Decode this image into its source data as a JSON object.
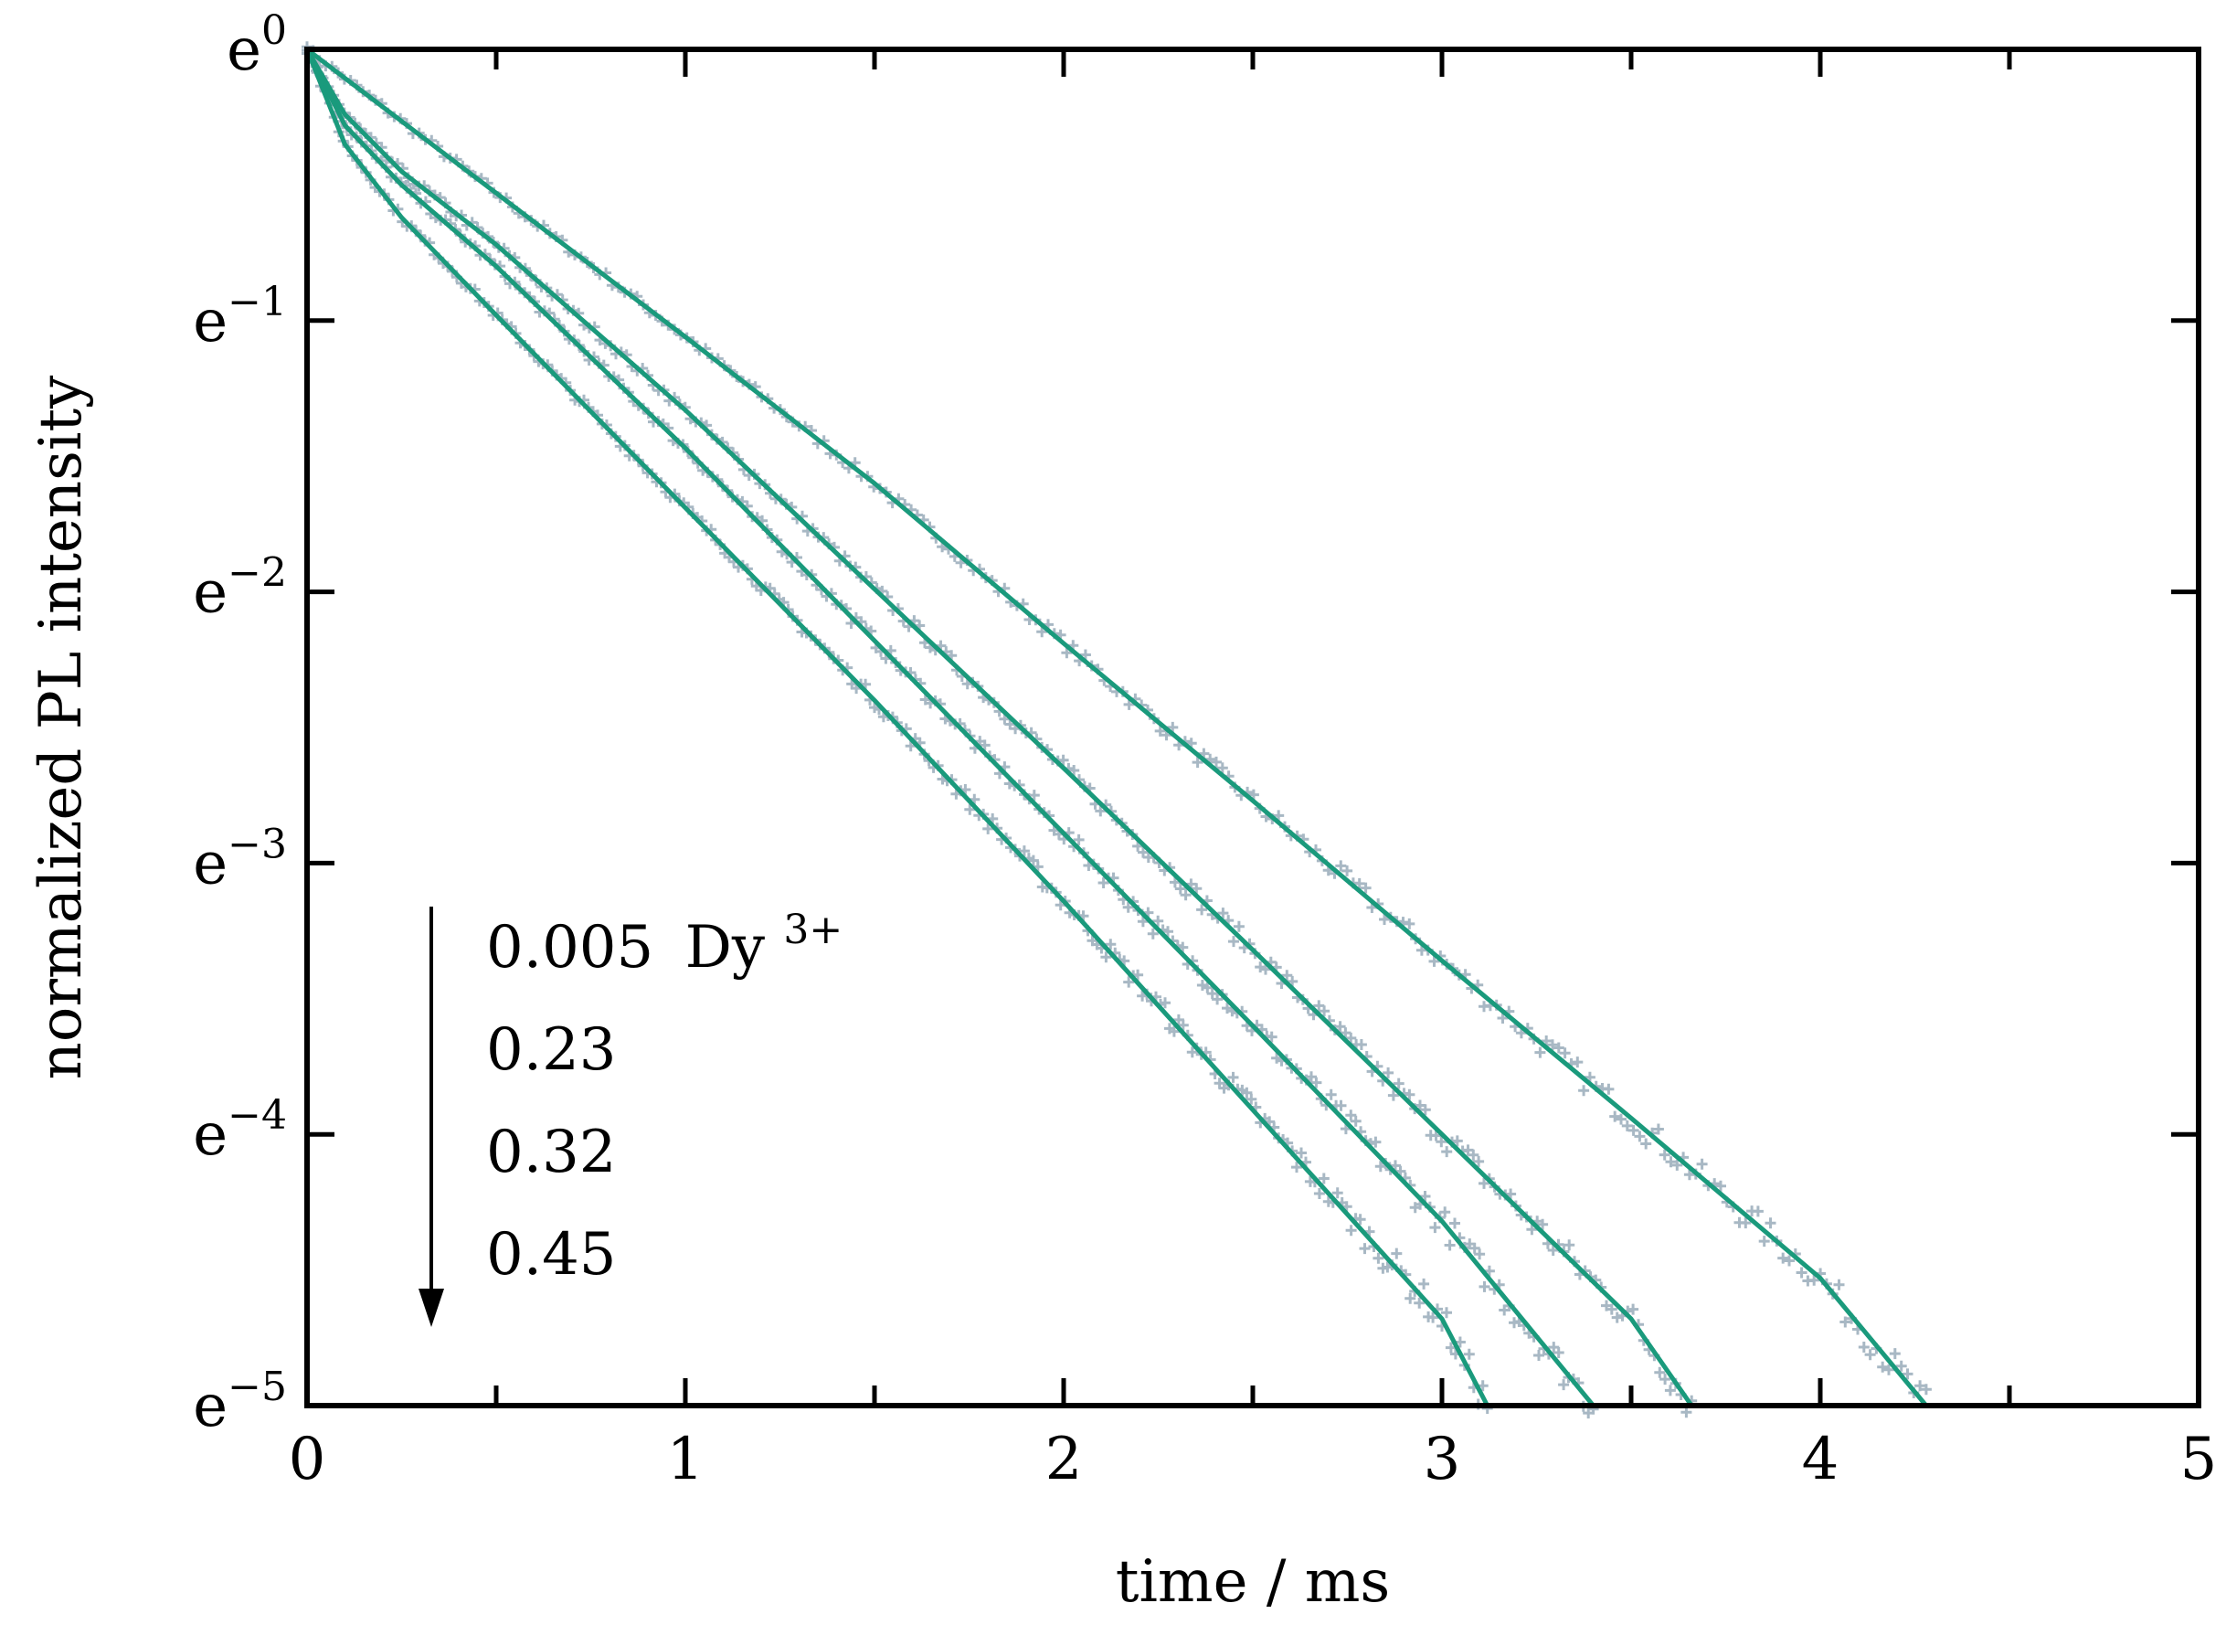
{
  "chart_data": {
    "type": "line",
    "xlabel": "time / ms",
    "ylabel": "normalized PL intensity",
    "xlim": [
      0,
      5
    ],
    "ylim_ln": [
      -5,
      0
    ],
    "y_scale": "log (base e)",
    "x_ticks": [
      "0",
      "1",
      "2",
      "3",
      "4",
      "5"
    ],
    "y_tick_base": "e",
    "y_tick_exponents": [
      "0",
      "−1",
      "−2",
      "−3",
      "−4",
      "−5"
    ],
    "grid": false,
    "legend": {
      "placement": "bottom-left",
      "arrow": "down",
      "entries": [
        "0.005",
        "0.23",
        "0.32",
        "0.45"
      ],
      "first_suffix": "Dy",
      "first_suffix_sup": "3+"
    },
    "colors": {
      "fit": "#1a9a7c",
      "data": "#a8b8c4",
      "axis": "#000000"
    },
    "series": [
      {
        "name": "0.005",
        "x": [
          0,
          0.5,
          1,
          1.5,
          2,
          2.5,
          3,
          3.5,
          4,
          4.28
        ],
        "ln_y": [
          0,
          -0.53,
          -1.06,
          -1.6,
          -2.19,
          -2.77,
          -3.36,
          -3.94,
          -4.53,
          -5
        ]
      },
      {
        "name": "0.23",
        "x": [
          0,
          0.1,
          0.25,
          0.5,
          1,
          1.5,
          2,
          2.5,
          3,
          3.5,
          3.66
        ],
        "ln_y": [
          0,
          -0.24,
          -0.45,
          -0.72,
          -1.33,
          -1.99,
          -2.65,
          -3.32,
          -4.0,
          -4.68,
          -5
        ]
      },
      {
        "name": "0.32",
        "x": [
          0,
          0.1,
          0.25,
          0.5,
          1,
          1.5,
          2,
          2.5,
          3,
          3.4
        ],
        "ln_y": [
          0,
          -0.28,
          -0.5,
          -0.8,
          -1.47,
          -2.18,
          -2.89,
          -3.6,
          -4.32,
          -5
        ]
      },
      {
        "name": "0.45",
        "x": [
          0,
          0.1,
          0.25,
          0.5,
          1,
          1.5,
          2,
          2.5,
          3,
          3.12
        ],
        "ln_y": [
          0,
          -0.35,
          -0.62,
          -0.98,
          -1.69,
          -2.4,
          -3.14,
          -3.91,
          -4.68,
          -5
        ]
      }
    ]
  }
}
